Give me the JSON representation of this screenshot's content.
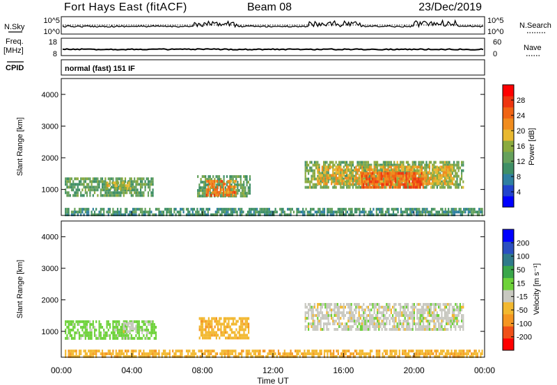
{
  "header": {
    "station": "Fort Hays East (fitACF)",
    "beam": "Beam 08",
    "date": "23/Dec/2019"
  },
  "top_panels": {
    "nsky_label": "N.Sky",
    "nsky_ticks": [
      "10^5",
      "10^0"
    ],
    "nsearch_label": "N.Search",
    "nsearch_ticks": [
      "10^5",
      "10^0"
    ],
    "freq_label": "Freq.",
    "freq_unit": "[MHz]",
    "freq_ticks": [
      "18",
      "8"
    ],
    "nave_label": "Nave",
    "nave_ticks": [
      "60",
      "0"
    ],
    "cpid_label": "CPID",
    "cpid_value": "normal (fast) 151 IF"
  },
  "chart_data": [
    {
      "type": "heatmap",
      "name": "power",
      "ylabel": "Slant Range [km]",
      "ylim": [
        180,
        4500
      ],
      "yticks": [
        1000,
        2000,
        3000,
        4000
      ],
      "xlim": [
        0,
        24
      ],
      "colorbar_label": "Power [dB]",
      "colorbar_ticks": [
        "28",
        "24",
        "20",
        "16",
        "12",
        "8",
        "4"
      ],
      "colors": [
        "#0000ff",
        "#2244cc",
        "#2f7fa0",
        "#3f8f66",
        "#66a15c",
        "#8aaa3e",
        "#e8b830",
        "#f08c1e",
        "#f06414",
        "#ee3510",
        "#ff0000"
      ],
      "regions": [
        {
          "t0": 0.2,
          "t1": 5.2,
          "r0": 820,
          "r1": 1380,
          "v": 12
        },
        {
          "t0": 2.5,
          "t1": 3.9,
          "r0": 1050,
          "r1": 1250,
          "v": 18
        },
        {
          "t0": 7.7,
          "t1": 10.7,
          "r0": 780,
          "r1": 1450,
          "v": 12
        },
        {
          "t0": 8.2,
          "t1": 9.9,
          "r0": 800,
          "r1": 1300,
          "v": 24
        },
        {
          "t0": 13.8,
          "t1": 22.8,
          "r0": 1050,
          "r1": 1900,
          "v": 14
        },
        {
          "t0": 14.5,
          "t1": 22.2,
          "r0": 1200,
          "r1": 1750,
          "v": 20
        },
        {
          "t0": 17.0,
          "t1": 20.5,
          "r0": 1100,
          "r1": 1550,
          "v": 26
        },
        {
          "t0": 0.2,
          "t1": 23.9,
          "r0": 200,
          "r1": 420,
          "v": 10
        }
      ]
    },
    {
      "type": "heatmap",
      "name": "velocity",
      "ylabel": "Slant Range [km]",
      "ylim": [
        180,
        4500
      ],
      "yticks": [
        1000,
        2000,
        3000,
        4000
      ],
      "xlim": [
        0,
        24
      ],
      "xticks": [
        "00:00",
        "04:00",
        "08:00",
        "12:00",
        "16:00",
        "20:00",
        "00:00"
      ],
      "xlabel": "Time UT",
      "colorbar_label": "Velocity [m s⁻¹]",
      "colorbar_ticks": [
        "200",
        "100",
        "50",
        "15",
        "-15",
        "-50",
        "-100",
        "-200"
      ],
      "colors": [
        "#ff0000",
        "#f05018",
        "#f59622",
        "#f2b830",
        "#c8c8c0",
        "#6ed23a",
        "#3aa64a",
        "#2f7a8a",
        "#2b4fc0",
        "#0000ff"
      ],
      "regions": [
        {
          "t0": 0.2,
          "t1": 5.4,
          "r0": 800,
          "r1": 1350,
          "v": 30
        },
        {
          "t0": 3.5,
          "t1": 4.2,
          "r0": 1000,
          "r1": 1300,
          "v": 0
        },
        {
          "t0": 7.8,
          "t1": 10.6,
          "r0": 760,
          "r1": 1450,
          "v": -35
        },
        {
          "t0": 13.8,
          "t1": 22.8,
          "r0": 1050,
          "r1": 1900,
          "v": 0
        },
        {
          "t0": 0.2,
          "t1": 23.9,
          "r0": 200,
          "r1": 420,
          "v": -40
        }
      ]
    }
  ]
}
